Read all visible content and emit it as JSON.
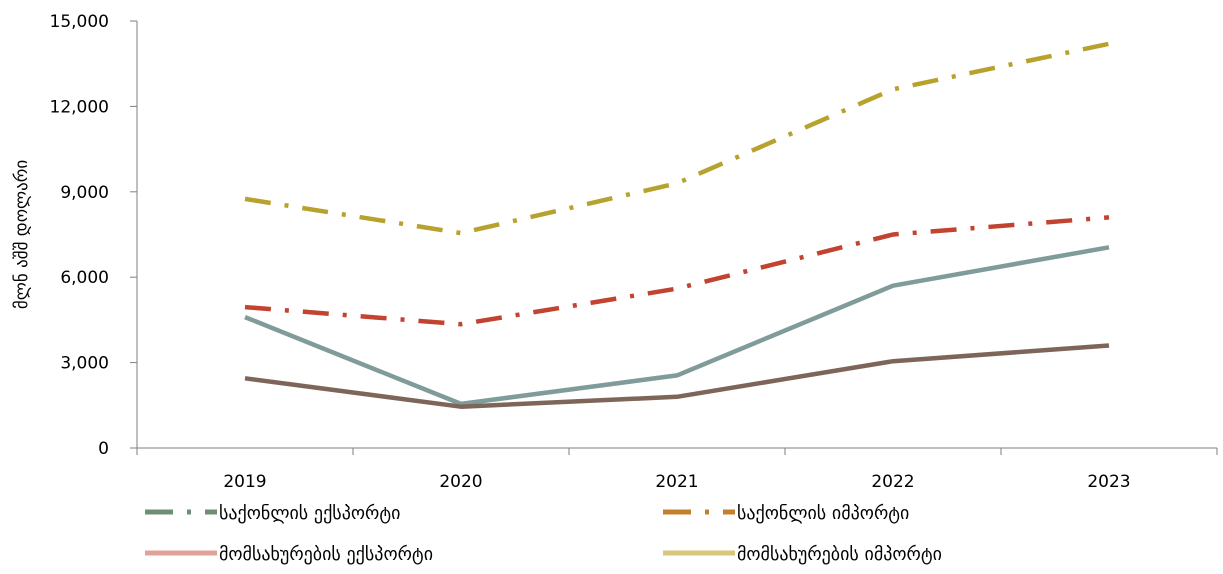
{
  "chart_data": {
    "type": "line",
    "title": "",
    "xlabel": "",
    "ylabel": "მლნ აშშ დოლარი",
    "x": [
      "2019",
      "2020",
      "2021",
      "2022",
      "2023"
    ],
    "ylim": [
      0,
      15000
    ],
    "yticks": [
      0,
      3000,
      6000,
      9000,
      12000,
      15000
    ],
    "ytick_labels": [
      "0",
      "3,000",
      "6,000",
      "9,000",
      "12,000",
      "15,000"
    ],
    "grid": false,
    "legend_position": "bottom",
    "series": [
      {
        "id": "goods_export",
        "name": "საქონლის ექსპორტი",
        "values": [
          4600,
          1550,
          2550,
          5700,
          7050
        ],
        "line_color": "#7f9c9b",
        "legend_color": "#6e8f73",
        "dash": "solid",
        "legend_dash": "dashdot"
      },
      {
        "id": "goods_import",
        "name": "საქონლის იმპორტი",
        "values": [
          8750,
          7550,
          9300,
          12600,
          14200
        ],
        "line_color": "#b8a22e",
        "legend_color": "#c47f2c",
        "dash": "dashdot",
        "legend_dash": "dashdot"
      },
      {
        "id": "services_export",
        "name": "მომსახურების ექსპორტი",
        "values": [
          2450,
          1450,
          1800,
          3050,
          3600
        ],
        "line_color": "#7d6659",
        "legend_color": "#e0a39a",
        "dash": "solid",
        "legend_dash": "solid"
      },
      {
        "id": "services_import",
        "name": "მომსახურების იმპორტი",
        "values": [
          4950,
          4350,
          5600,
          7500,
          8100
        ],
        "line_color": "#c2432f",
        "legend_color": "#d8c77a",
        "dash": "dashdot",
        "legend_dash": "solid"
      }
    ]
  }
}
